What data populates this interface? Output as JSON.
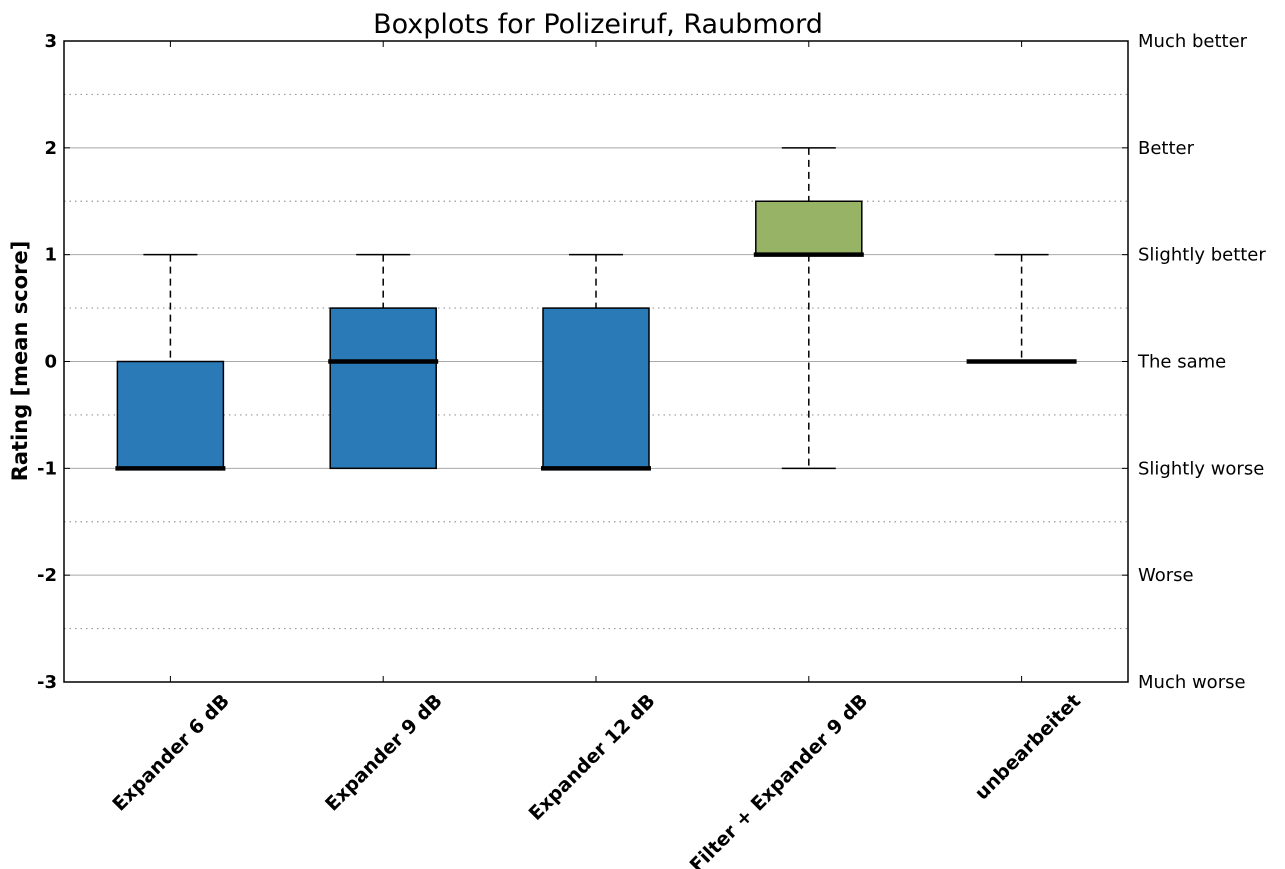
{
  "chart_data": {
    "type": "boxplot",
    "title": "Boxplots for Polizeiruf, Raubmord",
    "ylabel": "Rating [mean score]",
    "xlabel": "",
    "ylim": [
      -3,
      3
    ],
    "yticks": [
      -3,
      -2,
      -1,
      0,
      1,
      2,
      3
    ],
    "ytick_labels": [
      "-3",
      "-2",
      "-1",
      "0",
      "1",
      "2",
      "3"
    ],
    "right_labels": [
      "Much worse",
      "Worse",
      "Slightly worse",
      "The same",
      "Slightly better",
      "Better",
      "Much better"
    ],
    "grid": {
      "major": true,
      "minor_dotted": true
    },
    "categories": [
      "Expander 6 dB",
      "Expander 9 dB",
      "Expander 12 dB",
      "Filter + Expander 9 dB",
      "unbearbeitet"
    ],
    "boxes": [
      {
        "label": "Expander 6 dB",
        "whisker_low": -1,
        "q1": -1,
        "median": -1,
        "q3": 0,
        "whisker_high": 1,
        "color": "#2a7ab8"
      },
      {
        "label": "Expander 9 dB",
        "whisker_low": -1,
        "q1": -1,
        "median": 0,
        "q3": 0.5,
        "whisker_high": 1,
        "color": "#2a7ab8"
      },
      {
        "label": "Expander 12 dB",
        "whisker_low": -1,
        "q1": -1,
        "median": -1,
        "q3": 0.5,
        "whisker_high": 1,
        "color": "#2a7ab8"
      },
      {
        "label": "Filter + Expander 9 dB",
        "whisker_low": -1,
        "q1": 1,
        "median": 1,
        "q3": 1.5,
        "whisker_high": 2,
        "color": "#97b365"
      },
      {
        "label": "unbearbeitet",
        "whisker_low": 0,
        "q1": 0,
        "median": 0,
        "q3": 0,
        "whisker_high": 1,
        "color": "#2a7ab8"
      }
    ]
  }
}
